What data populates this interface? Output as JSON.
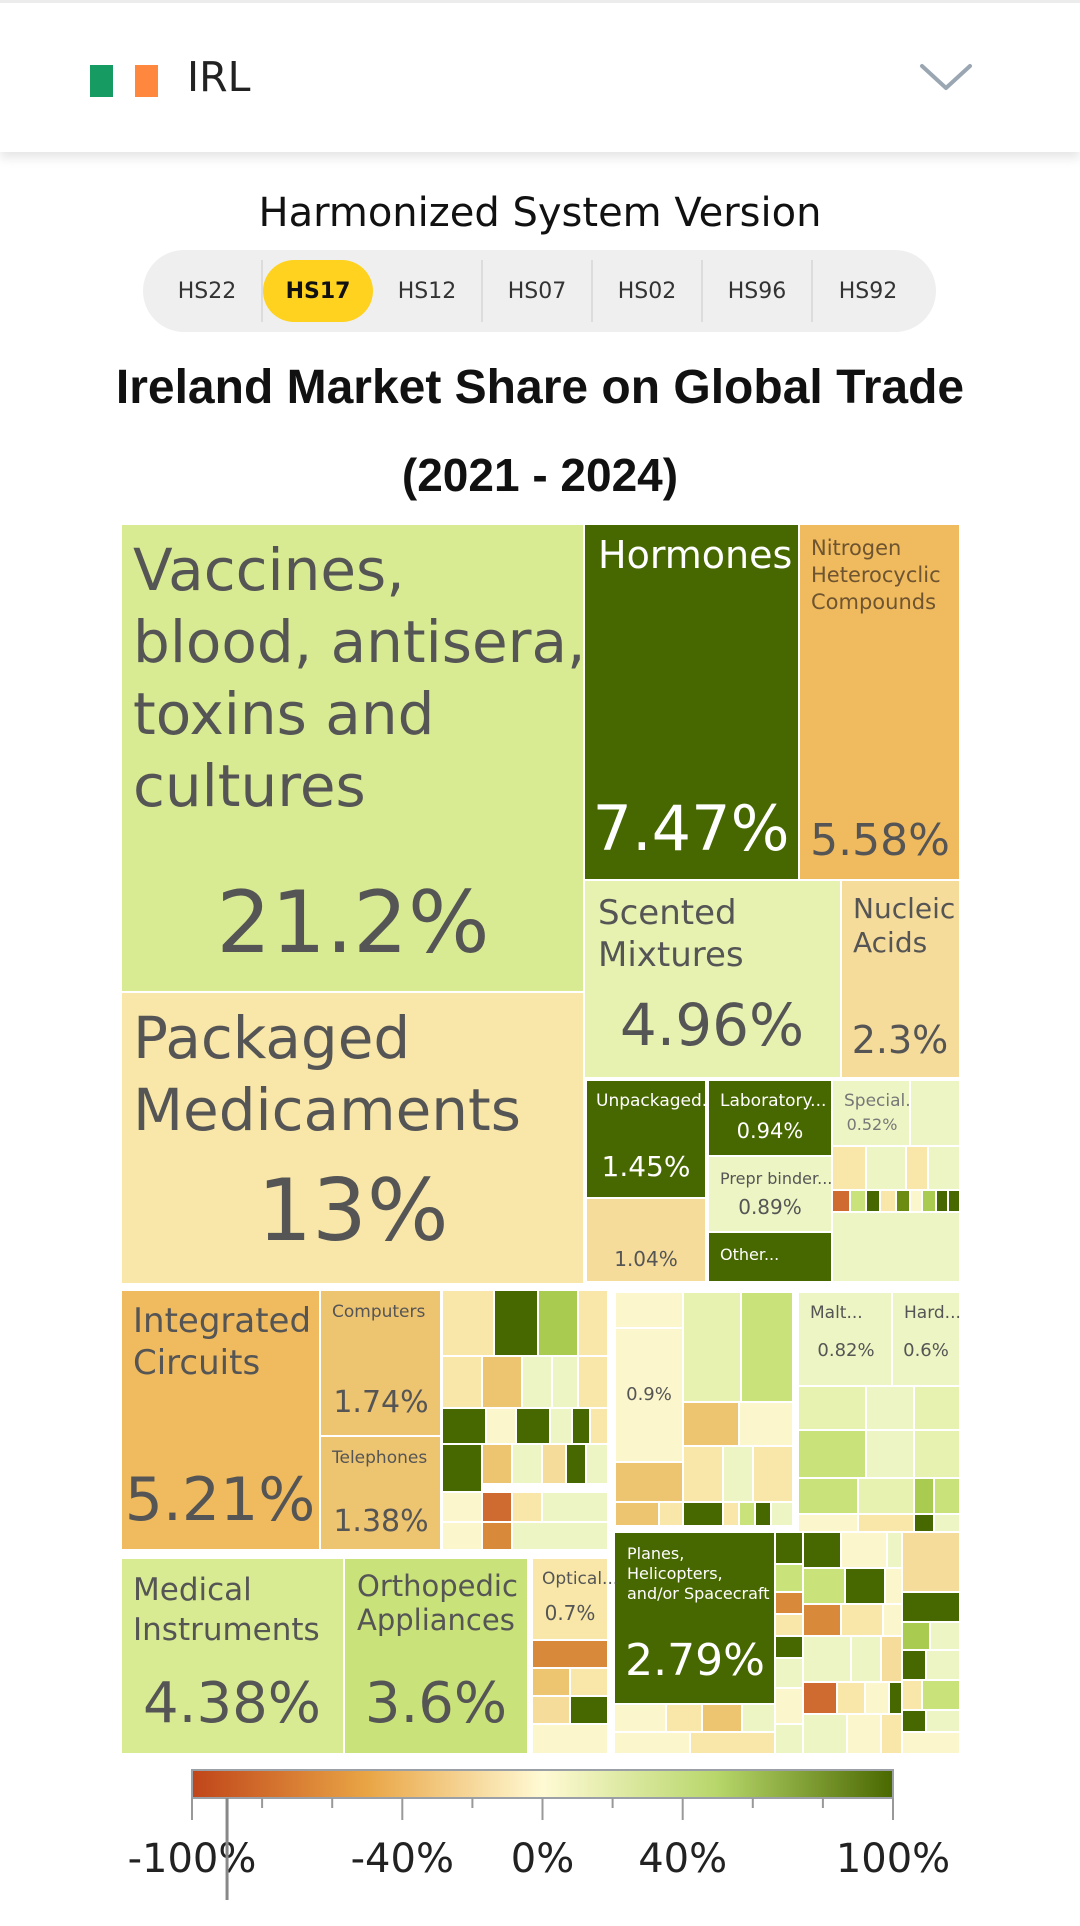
{
  "header": {
    "country_code": "IRL",
    "flag_colors": [
      "#169b62",
      "#ffffff",
      "#ff883e"
    ]
  },
  "hs_selector": {
    "title": "Harmonized System Version",
    "tabs": [
      {
        "label": "HS22",
        "active": false
      },
      {
        "label": "HS17",
        "active": true
      },
      {
        "label": "HS12",
        "active": false
      },
      {
        "label": "HS07",
        "active": false
      },
      {
        "label": "HS02",
        "active": false
      },
      {
        "label": "HS96",
        "active": false
      },
      {
        "label": "HS92",
        "active": false
      }
    ]
  },
  "chart_data": {
    "type": "treemap",
    "title": "Ireland Market Share on Global Trade",
    "subtitle": "(2021 - 2024)",
    "color_scale": {
      "ticks": [
        "-100%",
        "-40%",
        "0%",
        "40%",
        "100%"
      ],
      "tick_values": [
        -100,
        -40,
        0,
        40,
        100
      ],
      "stops": [
        "#c0451a",
        "#e9a545",
        "#fffad4",
        "#b7d66a",
        "#4a6800"
      ],
      "marker_value": -90
    },
    "tiles": [
      {
        "label": "Vaccines, blood, antisera, toxins and cultures",
        "share": "21.2%"
      },
      {
        "label": "Packaged Medicaments",
        "share": "13%"
      },
      {
        "label": "Hormones",
        "share": "7.47%"
      },
      {
        "label": "Nitrogen Heterocyclic Compounds",
        "share": "5.58%"
      },
      {
        "label": "Scented Mixtures",
        "share": "4.96%"
      },
      {
        "label": "Nucleic Acids",
        "share": "2.3%"
      },
      {
        "label": "Unpackaged...",
        "share": "1.45%"
      },
      {
        "label": "Laboratory...",
        "share": "0.94%"
      },
      {
        "label": "Prepr binder...",
        "share": "0.89%"
      },
      {
        "label": "Special...",
        "share": "0.52%"
      },
      {
        "label": "",
        "share": "1.04%"
      },
      {
        "label": "Other...",
        "share": ""
      },
      {
        "label": "Integrated Circuits",
        "share": "5.21%"
      },
      {
        "label": "Computers",
        "share": "1.74%"
      },
      {
        "label": "Telephones",
        "share": "1.38%"
      },
      {
        "label": "",
        "share": "0.9%"
      },
      {
        "label": "Malt...",
        "share": "0.82%"
      },
      {
        "label": "Hard...",
        "share": "0.6%"
      },
      {
        "label": "Medical Instruments",
        "share": "4.38%"
      },
      {
        "label": "Orthopedic Appliances",
        "share": "3.6%"
      },
      {
        "label": "Optical...",
        "share": "0.7%"
      },
      {
        "label": "Planes, Helicopters, and/or Spacecraft",
        "share": "2.79%"
      }
    ]
  }
}
